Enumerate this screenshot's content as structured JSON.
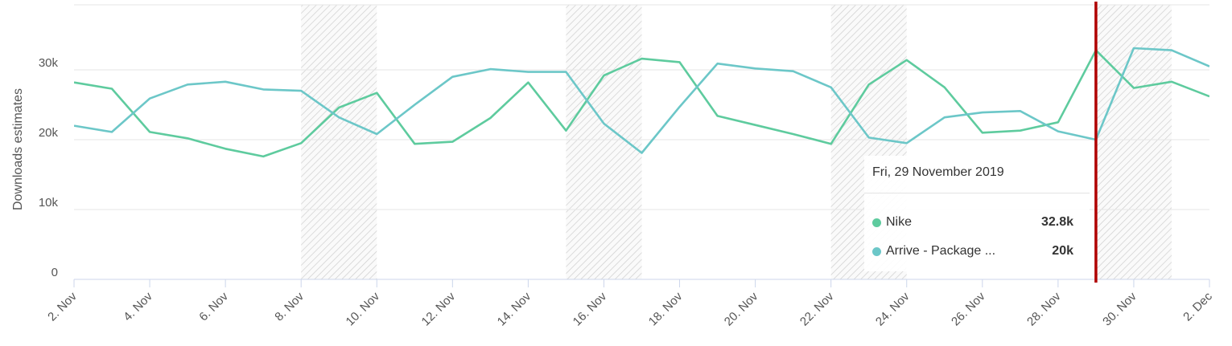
{
  "chart_data": {
    "type": "line",
    "ylabel": "Downloads estimates",
    "xlabel": "",
    "ylim": [
      0,
      40000
    ],
    "y_ticks": [
      0,
      10000,
      20000,
      30000
    ],
    "y_tick_labels": [
      "0",
      "10k",
      "20k",
      "30k"
    ],
    "x_tick_labels": [
      "2. Nov",
      "4. Nov",
      "6. Nov",
      "8. Nov",
      "10. Nov",
      "12. Nov",
      "14. Nov",
      "16. Nov",
      "18. Nov",
      "20. Nov",
      "22. Nov",
      "24. Nov",
      "26. Nov",
      "28. Nov",
      "30. Nov",
      "2. Dec"
    ],
    "x_dates": [
      "2019-11-02",
      "2019-11-03",
      "2019-11-04",
      "2019-11-05",
      "2019-11-06",
      "2019-11-07",
      "2019-11-08",
      "2019-11-09",
      "2019-11-10",
      "2019-11-11",
      "2019-11-12",
      "2019-11-13",
      "2019-11-14",
      "2019-11-15",
      "2019-11-16",
      "2019-11-17",
      "2019-11-18",
      "2019-11-19",
      "2019-11-20",
      "2019-11-21",
      "2019-11-22",
      "2019-11-23",
      "2019-11-24",
      "2019-11-25",
      "2019-11-26",
      "2019-11-27",
      "2019-11-28",
      "2019-11-29",
      "2019-11-30",
      "2019-12-01",
      "2019-12-02"
    ],
    "weekend_bands": [
      [
        "2019-11-08",
        "2019-11-10"
      ],
      [
        "2019-11-15",
        "2019-11-17"
      ],
      [
        "2019-11-22",
        "2019-11-24"
      ],
      [
        "2019-11-29",
        "2019-12-01"
      ]
    ],
    "highlight_date": "2019-11-29",
    "grid": true,
    "series": [
      {
        "name": "Nike",
        "color": "#5ecb9e",
        "values": [
          28200,
          27300,
          21100,
          20200,
          18700,
          17600,
          19500,
          24600,
          26700,
          19400,
          19700,
          23100,
          28200,
          21300,
          29200,
          31600,
          31100,
          23400,
          22100,
          20800,
          19400,
          27900,
          31400,
          27500,
          21000,
          21300,
          22500,
          32800,
          27400,
          28300,
          26200
        ]
      },
      {
        "name": "Arrive - Package ...",
        "color": "#6cc7c8",
        "values": [
          22000,
          21100,
          25900,
          27900,
          28300,
          27200,
          27000,
          23200,
          20800,
          25000,
          29000,
          30100,
          29700,
          29700,
          22300,
          18100,
          24700,
          30900,
          30200,
          29800,
          27500,
          20300,
          19500,
          23200,
          23900,
          24100,
          21200,
          20000,
          33100,
          32800,
          30500
        ]
      }
    ]
  },
  "tooltip": {
    "date": "Fri, 29 November 2019",
    "rows": [
      {
        "name": "Nike",
        "value": "32.8k",
        "color": "#5ecb9e"
      },
      {
        "name": "Arrive - Package ...",
        "value": "20k",
        "color": "#6cc7c8"
      }
    ]
  },
  "colors": {
    "crosshair": "#b00000",
    "grid": "#e6e6e6",
    "axis": "#ccd6eb",
    "band_hatch": "#cccccc"
  }
}
